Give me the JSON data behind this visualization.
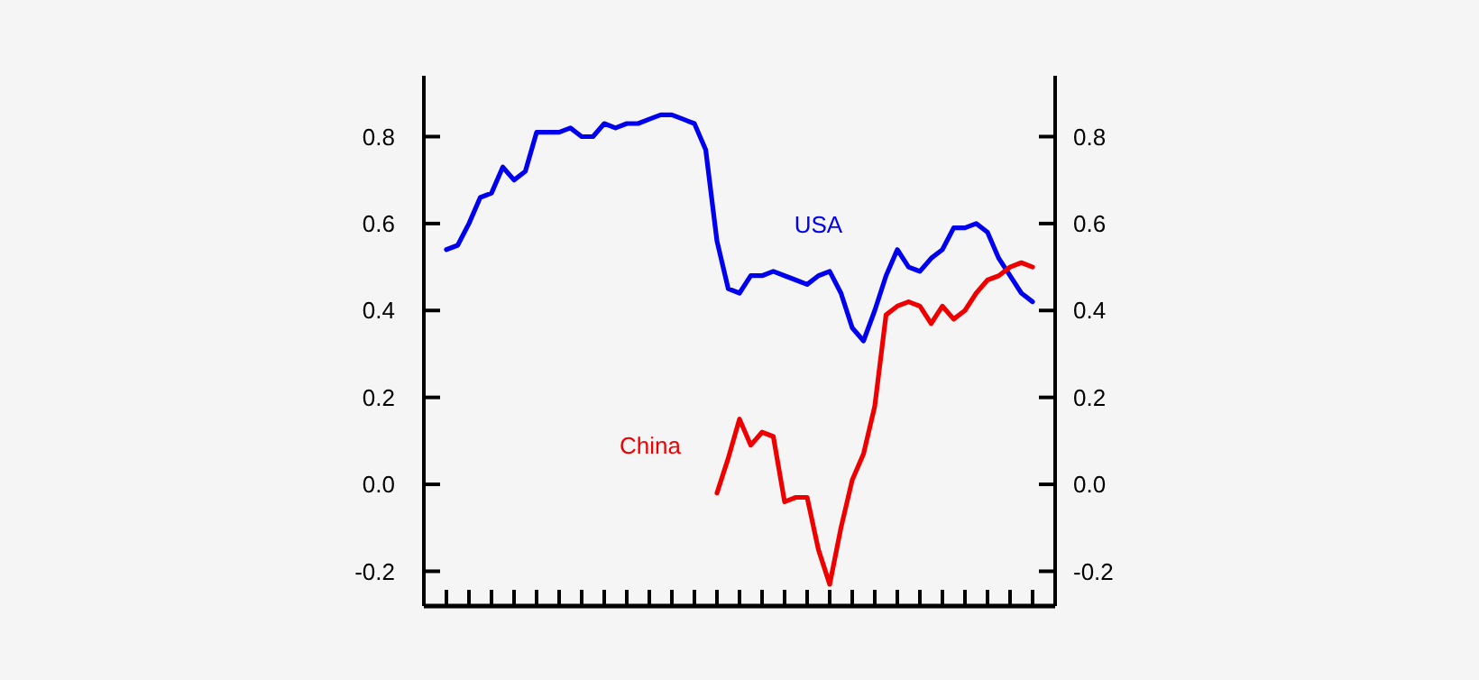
{
  "chart_data": {
    "type": "line",
    "categories": [
      null,
      null,
      null,
      null,
      null,
      null,
      null,
      null,
      null,
      null,
      null,
      null,
      null,
      null,
      null,
      null,
      null,
      null,
      null,
      null,
      null,
      null,
      null,
      null,
      null,
      null,
      null,
      null,
      null,
      null,
      null,
      null,
      null,
      null,
      null,
      null,
      null,
      null,
      null,
      null,
      null,
      null,
      null,
      null,
      null,
      null,
      null,
      null,
      null,
      null,
      null,
      null,
      null,
      null,
      null,
      null,
      null
    ],
    "ylim": [
      -0.28,
      0.94
    ],
    "yticks": [
      -0.2,
      {
        "value": 0,
        "label": "0.0"
      },
      0.2,
      0.4,
      0.6,
      0.8
    ],
    "y2lim": [
      -0.28,
      0.94
    ],
    "y2ticks": [
      -0.2,
      {
        "value": 0,
        "label": "0.0"
      },
      0.2,
      0.4,
      0.6,
      0.8
    ],
    "tick_labels": "y",
    "grid": false,
    "legend": false,
    "marker": "none",
    "line_style": "solid",
    "series": [
      {
        "name": "USA",
        "color": "#0000ee",
        "values": [
          null,
          null,
          0.54,
          0.55,
          0.6,
          0.66,
          0.67,
          0.73,
          0.7,
          0.72,
          0.81,
          0.81,
          0.81,
          0.82,
          0.8,
          0.8,
          0.83,
          0.82,
          0.83,
          0.83,
          0.84,
          0.85,
          0.85,
          0.84,
          0.83,
          0.77,
          0.56,
          0.45,
          0.44,
          0.48,
          0.48,
          0.49,
          0.48,
          0.47,
          0.46,
          0.48,
          0.49,
          0.44,
          0.36,
          0.33,
          0.4,
          0.48,
          0.54,
          0.5,
          0.49,
          0.52,
          0.54,
          0.59,
          0.59,
          0.6,
          0.58,
          0.52,
          0.48,
          0.44,
          0.42,
          null,
          null
        ]
      },
      {
        "name": "China",
        "color": "#ee0000",
        "values": [
          null,
          null,
          null,
          null,
          null,
          null,
          null,
          null,
          null,
          null,
          null,
          null,
          null,
          null,
          null,
          null,
          null,
          null,
          null,
          null,
          null,
          null,
          null,
          null,
          null,
          null,
          -0.02,
          0.06,
          0.15,
          0.09,
          0.12,
          0.11,
          -0.04,
          -0.03,
          -0.03,
          -0.15,
          -0.23,
          -0.1,
          0.01,
          0.07,
          0.18,
          0.39,
          0.41,
          0.42,
          0.41,
          0.37,
          0.41,
          0.38,
          0.4,
          0.44,
          0.47,
          0.48,
          0.5,
          0.51,
          0.5,
          null,
          null
        ]
      }
    ]
  }
}
